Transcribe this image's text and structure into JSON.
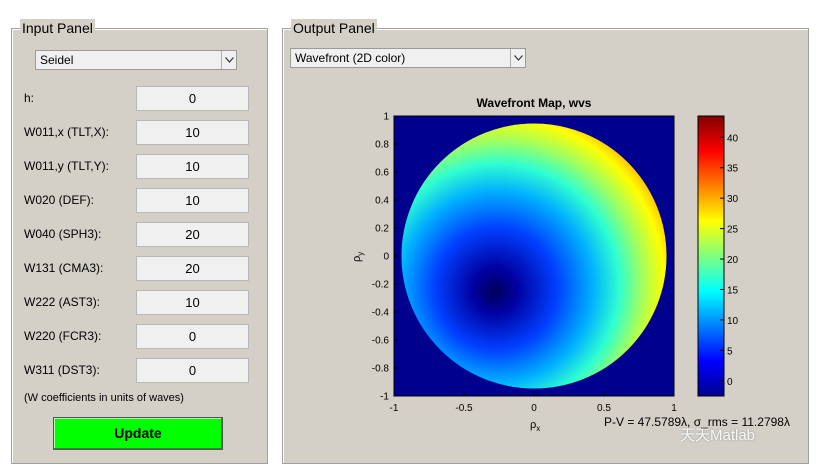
{
  "input_panel": {
    "title": "Input Panel",
    "method_select": "Seidel",
    "params": [
      {
        "label": "h:",
        "value": "0"
      },
      {
        "label": "W011,x (TLT,X):",
        "value": "10"
      },
      {
        "label": "W011,y (TLT,Y):",
        "value": "10"
      },
      {
        "label": "W020 (DEF):",
        "value": "10"
      },
      {
        "label": "W040 (SPH3):",
        "value": "20"
      },
      {
        "label": "W131 (CMA3):",
        "value": "20"
      },
      {
        "label": "W222 (AST3):",
        "value": "10"
      },
      {
        "label": "W220 (FCR3):",
        "value": "0"
      },
      {
        "label": "W311 (DST3):",
        "value": "0"
      }
    ],
    "note": "(W coefficients in units of waves)",
    "update_label": "Update",
    "update_color": "#00ff00"
  },
  "output_panel": {
    "title": "Output Panel",
    "view_select": "Wavefront (2D color)",
    "plot": {
      "title": "Wavefront Map, wvs",
      "x_ticks": [
        "-1",
        "-0.5",
        "0",
        "0.5",
        "1"
      ],
      "y_ticks": [
        "1",
        "0.8",
        "0.6",
        "0.4",
        "0.2",
        "0",
        "-0.2",
        "-0.4",
        "-0.6",
        "-0.8",
        "-1"
      ],
      "colorbar_ticks": [
        "40",
        "35",
        "30",
        "25",
        "20",
        "15",
        "10",
        "5",
        "0"
      ],
      "colorbar_range": [
        -2.5,
        43.5
      ],
      "colormap": "jet",
      "background_color": "#00008f",
      "stats_text": "P-V = 47.5789λ, σ_rms = 11.2798λ"
    }
  },
  "watermark": "天天Matlab"
}
